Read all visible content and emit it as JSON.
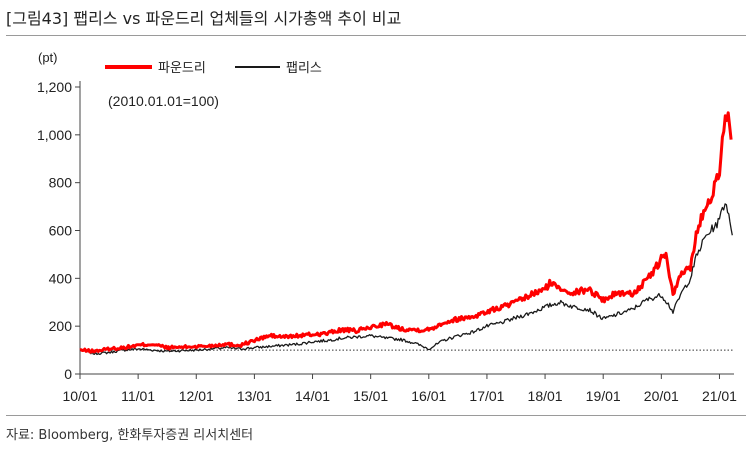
{
  "figure": {
    "title": "[그림43] 팹리스 vs 파운드리 업체들의 시가총액 추이 비교",
    "source": "자료: Bloomberg, 한화투자증권 리서치센터"
  },
  "chart_data": {
    "type": "line",
    "title": "",
    "xlabel": "",
    "ylabel": "(pt)",
    "note": "(2010.01.01=100)",
    "ylim": [
      0,
      1200
    ],
    "yticks": [
      0,
      200,
      400,
      600,
      800,
      1000,
      1200
    ],
    "ytick_labels": [
      "0",
      "200",
      "400",
      "600",
      "800",
      "1,000",
      "1,200"
    ],
    "xlim": [
      2010.0,
      2021.25
    ],
    "xticks": [
      2010,
      2011,
      2012,
      2013,
      2014,
      2015,
      2016,
      2017,
      2018,
      2019,
      2020,
      2021
    ],
    "xtick_labels": [
      "10/01",
      "11/01",
      "12/01",
      "13/01",
      "14/01",
      "15/01",
      "16/01",
      "17/01",
      "18/01",
      "19/01",
      "20/01",
      "21/01"
    ],
    "reference_line": {
      "y": 100,
      "style": "dotted"
    },
    "legend": {
      "placement": "top-left"
    },
    "series": [
      {
        "name": "파운드리",
        "color": "#ff0000",
        "x": [
          2010.0,
          2010.25,
          2010.5,
          2010.75,
          2011.0,
          2011.25,
          2011.5,
          2011.75,
          2012.0,
          2012.25,
          2012.5,
          2012.75,
          2013.0,
          2013.25,
          2013.5,
          2013.75,
          2014.0,
          2014.25,
          2014.5,
          2014.75,
          2015.0,
          2015.25,
          2015.5,
          2015.75,
          2016.0,
          2016.25,
          2016.5,
          2016.75,
          2017.0,
          2017.25,
          2017.5,
          2017.75,
          2018.0,
          2018.08,
          2018.25,
          2018.5,
          2018.75,
          2019.0,
          2019.25,
          2019.5,
          2019.75,
          2020.0,
          2020.08,
          2020.2,
          2020.35,
          2020.5,
          2020.6,
          2020.75,
          2020.85,
          2021.0,
          2021.05,
          2021.1,
          2021.15,
          2021.2
        ],
        "y": [
          100,
          95,
          105,
          110,
          120,
          125,
          110,
          112,
          115,
          118,
          125,
          120,
          140,
          160,
          155,
          160,
          165,
          170,
          185,
          180,
          195,
          210,
          190,
          185,
          185,
          215,
          230,
          240,
          260,
          280,
          300,
          330,
          355,
          380,
          360,
          340,
          355,
          310,
          340,
          335,
          390,
          480,
          500,
          330,
          420,
          450,
          580,
          700,
          740,
          850,
          1000,
          1050,
          1080,
          980
        ]
      },
      {
        "name": "팹리스",
        "color": "#1a1a1a",
        "x": [
          2010.0,
          2010.25,
          2010.5,
          2010.75,
          2011.0,
          2011.25,
          2011.5,
          2011.75,
          2012.0,
          2012.25,
          2012.5,
          2012.75,
          2013.0,
          2013.25,
          2013.5,
          2013.75,
          2014.0,
          2014.25,
          2014.5,
          2014.75,
          2015.0,
          2015.25,
          2015.5,
          2015.75,
          2016.0,
          2016.25,
          2016.5,
          2016.75,
          2017.0,
          2017.25,
          2017.5,
          2017.75,
          2018.0,
          2018.25,
          2018.5,
          2018.75,
          2019.0,
          2019.25,
          2019.5,
          2019.75,
          2020.0,
          2020.1,
          2020.2,
          2020.35,
          2020.5,
          2020.6,
          2020.75,
          2020.85,
          2021.0,
          2021.05,
          2021.12,
          2021.18,
          2021.22
        ],
        "y": [
          100,
          85,
          90,
          100,
          105,
          100,
          95,
          98,
          100,
          105,
          110,
          105,
          110,
          115,
          120,
          125,
          135,
          140,
          150,
          155,
          160,
          150,
          145,
          130,
          105,
          140,
          160,
          175,
          200,
          215,
          235,
          255,
          280,
          300,
          280,
          270,
          230,
          250,
          270,
          310,
          330,
          300,
          260,
          340,
          400,
          490,
          570,
          600,
          640,
          700,
          710,
          650,
          580
        ]
      }
    ]
  }
}
